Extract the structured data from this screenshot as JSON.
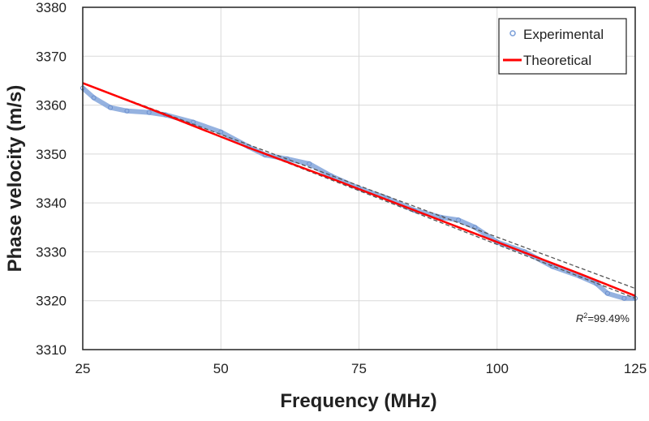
{
  "chart_data": {
    "type": "line",
    "title": "",
    "xlabel": "Frequency (MHz)",
    "ylabel": "Phase velocity (m/s)",
    "xlim": [
      25,
      125
    ],
    "ylim": [
      3310,
      3380
    ],
    "xticks": [
      25,
      50,
      75,
      100,
      125
    ],
    "yticks": [
      3310,
      3320,
      3330,
      3340,
      3350,
      3360,
      3370,
      3380
    ],
    "grid": true,
    "legend": "top-right",
    "annotation": {
      "prefix": "R",
      "sup": "2",
      "text": "=99.49%"
    },
    "colors": {
      "experimental": "#7b9fd8",
      "theoretical": "#ff0000",
      "bounds": "#555555"
    },
    "series": [
      {
        "name": "Experimental",
        "style": "circles",
        "x": [
          25,
          27,
          30,
          33,
          37,
          40,
          45,
          50,
          55,
          58,
          62,
          66,
          70,
          75,
          80,
          85,
          90,
          93,
          96,
          100,
          105,
          110,
          115,
          118,
          120,
          123,
          125
        ],
        "y": [
          3363.5,
          3361.5,
          3359.5,
          3358.8,
          3358.5,
          3358,
          3356.5,
          3354.5,
          3351.5,
          3349.8,
          3349,
          3348,
          3345.5,
          3343,
          3341,
          3338.5,
          3337,
          3336.5,
          3335,
          3332,
          3330,
          3327,
          3325,
          3323.5,
          3321.5,
          3320.5,
          3320.5
        ]
      },
      {
        "name": "Theoretical",
        "style": "solid",
        "x": [
          25,
          40,
          55,
          70,
          85,
          100,
          115,
          125
        ],
        "y": [
          3364.5,
          3358,
          3351.3,
          3345,
          3338.5,
          3332,
          3325.5,
          3321
        ]
      },
      {
        "style": "dashed",
        "x": [
          25,
          125
        ],
        "y": [
          3364.5,
          3322.5
        ]
      },
      {
        "style": "dashed",
        "x": [
          25,
          125
        ],
        "y": [
          3364.5,
          3320.5
        ]
      }
    ]
  }
}
